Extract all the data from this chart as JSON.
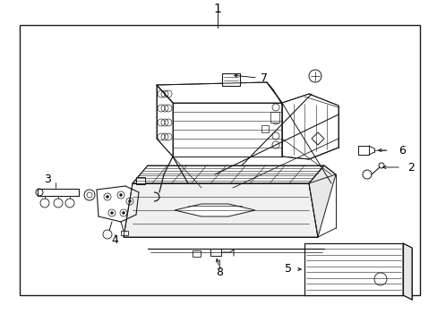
{
  "bg_color": "#ffffff",
  "line_color": "#1a1a1a",
  "text_color": "#000000",
  "labels": {
    "1": "1",
    "2": "2",
    "3": "3",
    "4": "4",
    "5": "5",
    "6": "6",
    "7": "7",
    "8": "8"
  },
  "border": [
    22,
    28,
    460,
    300
  ],
  "figsize": [
    4.89,
    3.6
  ],
  "dpi": 100
}
